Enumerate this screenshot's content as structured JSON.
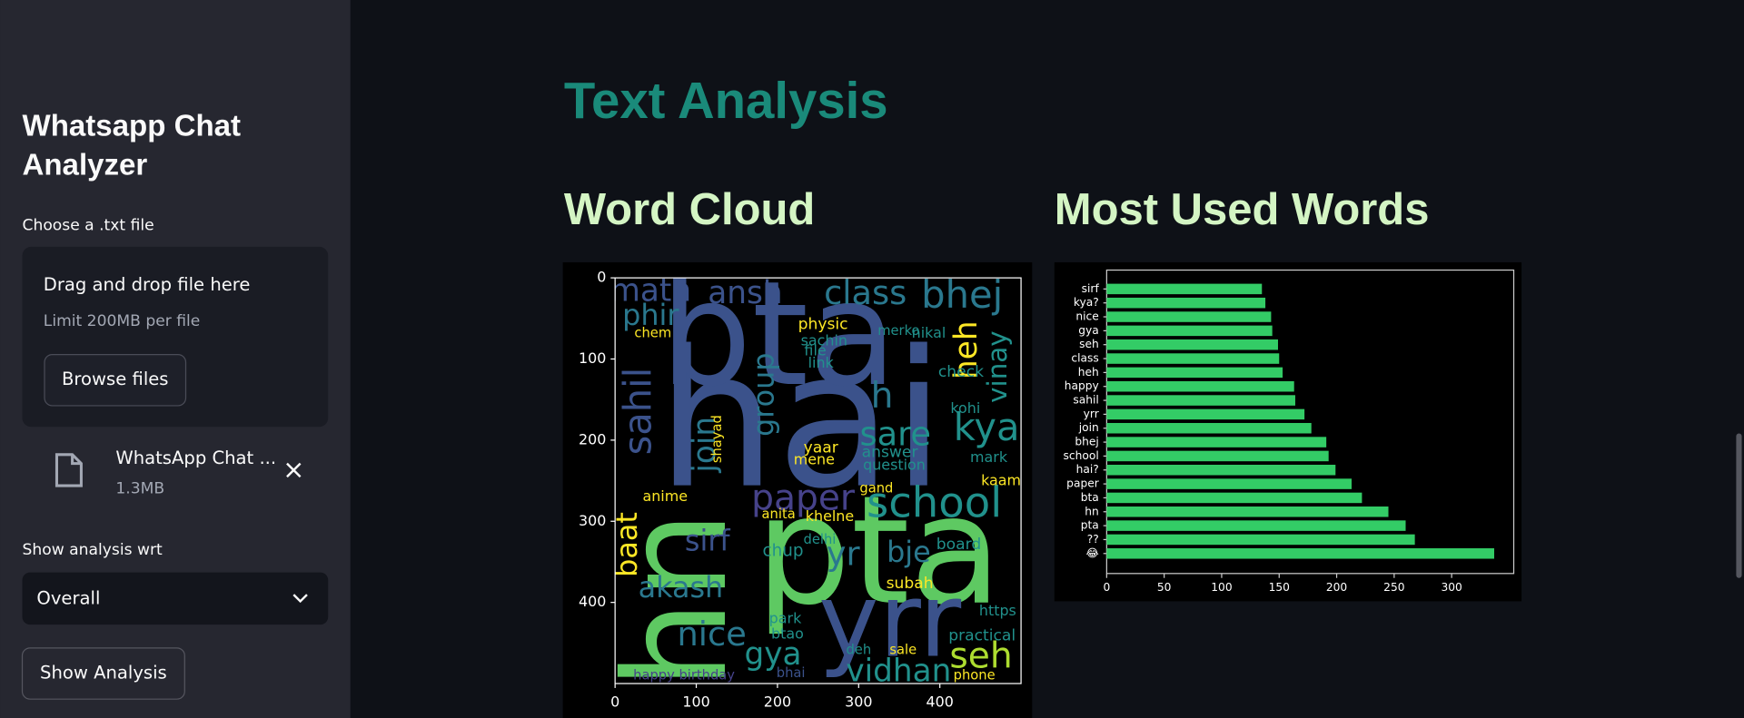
{
  "sidebar": {
    "title_lines": [
      "Whatsapp Chat",
      "Analyzer"
    ],
    "file_label": "Choose a .txt file",
    "dropzone": {
      "heading": "Drag and drop file here",
      "limit": "Limit 200MB per file",
      "button": "Browse files"
    },
    "file": {
      "name": "WhatsApp Chat ...",
      "size": "1.3MB"
    },
    "select_label": "Show analysis wrt",
    "select_value": "Overall",
    "button": "Show Analysis"
  },
  "main": {
    "title": "Text Analysis",
    "word_cloud": {
      "heading": "Word Cloud",
      "xlim": [
        0,
        500
      ],
      "ylim": [
        0,
        500
      ],
      "xticks": [
        0,
        100,
        200,
        300,
        400
      ],
      "yticks": [
        0,
        100,
        200,
        300,
        400
      ],
      "words": [
        "hai",
        "pta",
        "bta",
        "hn",
        "yrr",
        "school",
        "paper",
        "vidhan",
        "seh",
        "kya",
        "sare",
        "bhej",
        "class",
        "ansh",
        "math",
        "phir",
        "sahil",
        "join",
        "group",
        "baat",
        "sirf",
        "akash",
        "nice",
        "gya",
        "bje",
        "h",
        "heh",
        "vinay",
        "yr",
        "chup",
        "physic",
        "nikal",
        "answer",
        "question",
        "mark",
        "kaam",
        "board",
        "subah",
        "practical",
        "phone",
        "happy birthday",
        "bhai",
        "anime",
        "chem",
        "link",
        "file",
        "sachin",
        "merko",
        "check",
        "kohi",
        "yaar",
        "mene",
        "khelne",
        "anita",
        "gand",
        "delhi",
        "https",
        "park",
        "btao",
        "deh",
        "sale",
        "shayad"
      ]
    }
  },
  "chart_data": {
    "type": "bar",
    "orientation": "horizontal",
    "title": "Most Used Words",
    "color": "#33cc66",
    "categories": [
      "sirf",
      "kya?",
      "nice",
      "gya",
      "seh",
      "class",
      "heh",
      "happy",
      "sahil",
      "yrr",
      "join",
      "bhej",
      "school",
      "hai?",
      "paper",
      "bta",
      "hn",
      "pta",
      "??",
      "😂"
    ],
    "values": [
      135,
      138,
      143,
      144,
      149,
      150,
      153,
      163,
      164,
      172,
      178,
      191,
      193,
      199,
      213,
      222,
      245,
      260,
      268,
      337
    ],
    "xlim": [
      0,
      354
    ],
    "xticks": [
      0,
      50,
      100,
      150,
      200,
      250,
      300
    ]
  }
}
